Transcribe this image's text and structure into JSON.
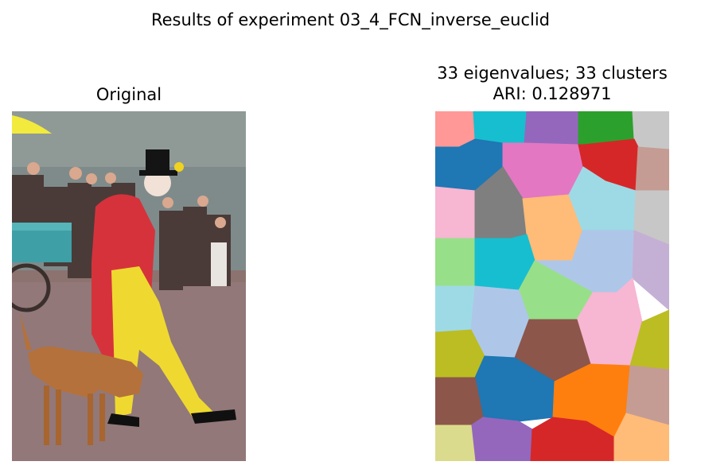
{
  "figure": {
    "suptitle": "Results of experiment 03_4_FCN_inverse_euclid"
  },
  "chart_data": [
    {
      "type": "image",
      "title": "Original",
      "description_visible": "photo of a clown in red jacket and yellow trousers walking with a dog, spectators behind"
    },
    {
      "type": "heatmap",
      "title_line1": "33 eigenvalues; 33 clusters",
      "title_line2": "ARI: 0.128971",
      "eigenvalues": 33,
      "clusters": 33,
      "ari": 0.128971,
      "palette": [
        "#1f77b4",
        "#ff7f0e",
        "#2ca02c",
        "#d62728",
        "#9467bd",
        "#8c564b",
        "#e377c2",
        "#7f7f7f",
        "#bcbd22",
        "#17becf",
        "#aec7e8",
        "#ffbb78",
        "#98df8a",
        "#ff9896",
        "#c5b0d5",
        "#c49c94",
        "#f7b6d2",
        "#c7c7c7",
        "#dbdb8d",
        "#9edae5"
      ]
    }
  ]
}
